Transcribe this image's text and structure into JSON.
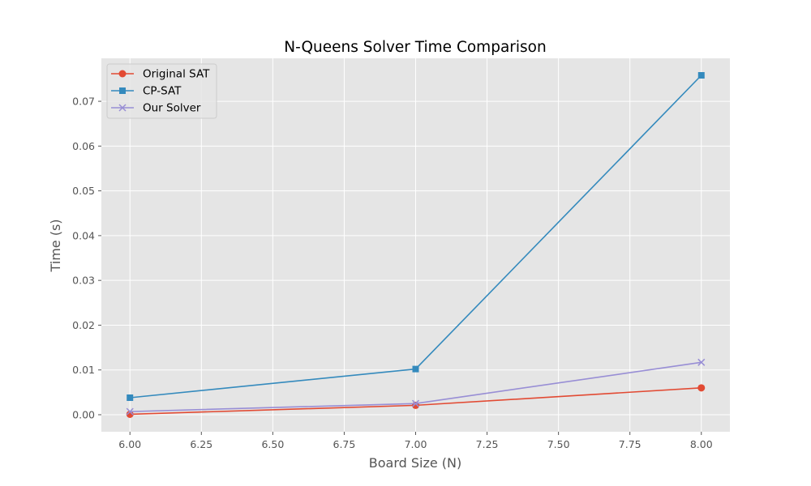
{
  "chart_data": {
    "type": "line",
    "title": "N-Queens Solver Time Comparison",
    "xlabel": "Board Size (N)",
    "ylabel": "Time (s)",
    "xlim": [
      5.9,
      8.1
    ],
    "ylim": [
      -0.0038,
      0.0796
    ],
    "x_ticks": [
      6.0,
      6.25,
      6.5,
      6.75,
      7.0,
      7.25,
      7.5,
      7.75,
      8.0
    ],
    "x_tick_labels": [
      "6.00",
      "6.25",
      "6.50",
      "6.75",
      "7.00",
      "7.25",
      "7.50",
      "7.75",
      "8.00"
    ],
    "y_ticks": [
      0.0,
      0.01,
      0.02,
      0.03,
      0.04,
      0.05,
      0.06,
      0.07
    ],
    "y_tick_labels": [
      "0.00",
      "0.01",
      "0.02",
      "0.03",
      "0.04",
      "0.05",
      "0.06",
      "0.07"
    ],
    "grid": true,
    "legend_position": "top-left",
    "x": [
      6,
      7,
      8
    ],
    "series": [
      {
        "name": "Original SAT",
        "values": [
          0.0001,
          0.0021,
          0.006
        ],
        "color": "#E24A33",
        "marker": "circle"
      },
      {
        "name": "CP-SAT",
        "values": [
          0.0038,
          0.0102,
          0.0758
        ],
        "color": "#348ABD",
        "marker": "square"
      },
      {
        "name": "Our Solver",
        "values": [
          0.0007,
          0.0025,
          0.0117
        ],
        "color": "#988ED5",
        "marker": "x"
      }
    ]
  }
}
